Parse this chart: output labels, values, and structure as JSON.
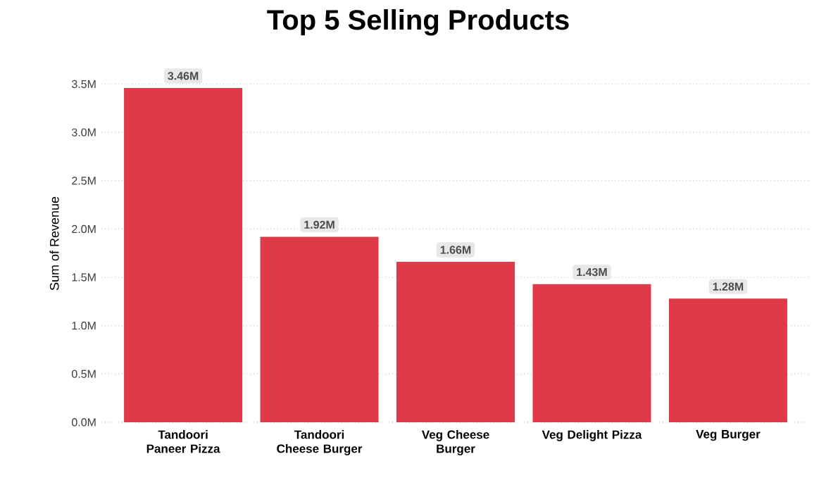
{
  "chart_data": {
    "type": "bar",
    "title": "Top 5 Selling Products",
    "ylabel": "Sum of Revenue",
    "categories": [
      "Tandoori Paneer Pizza",
      "Tandoori Cheese Burger",
      "Veg Cheese Burger",
      "Veg Delight Pizza",
      "Veg Burger"
    ],
    "values": [
      3.46,
      1.92,
      1.66,
      1.43,
      1.28
    ],
    "value_labels": [
      "3.46M",
      "1.92M",
      "1.66M",
      "1.43M",
      "1.28M"
    ],
    "color": "#e03a48",
    "ylim": [
      0,
      3.7
    ],
    "yticks": [
      {
        "value": 0,
        "label": "0.0M"
      },
      {
        "value": 0.5,
        "label": "0.5M"
      },
      {
        "value": 1,
        "label": "1.0M"
      },
      {
        "value": 1.5,
        "label": "1.5M"
      },
      {
        "value": 2,
        "label": "2.0M"
      },
      {
        "value": 2.5,
        "label": "2.5M"
      },
      {
        "value": 3,
        "label": "3.0M"
      },
      {
        "value": 3.5,
        "label": "3.5M"
      }
    ],
    "grid": "y"
  }
}
